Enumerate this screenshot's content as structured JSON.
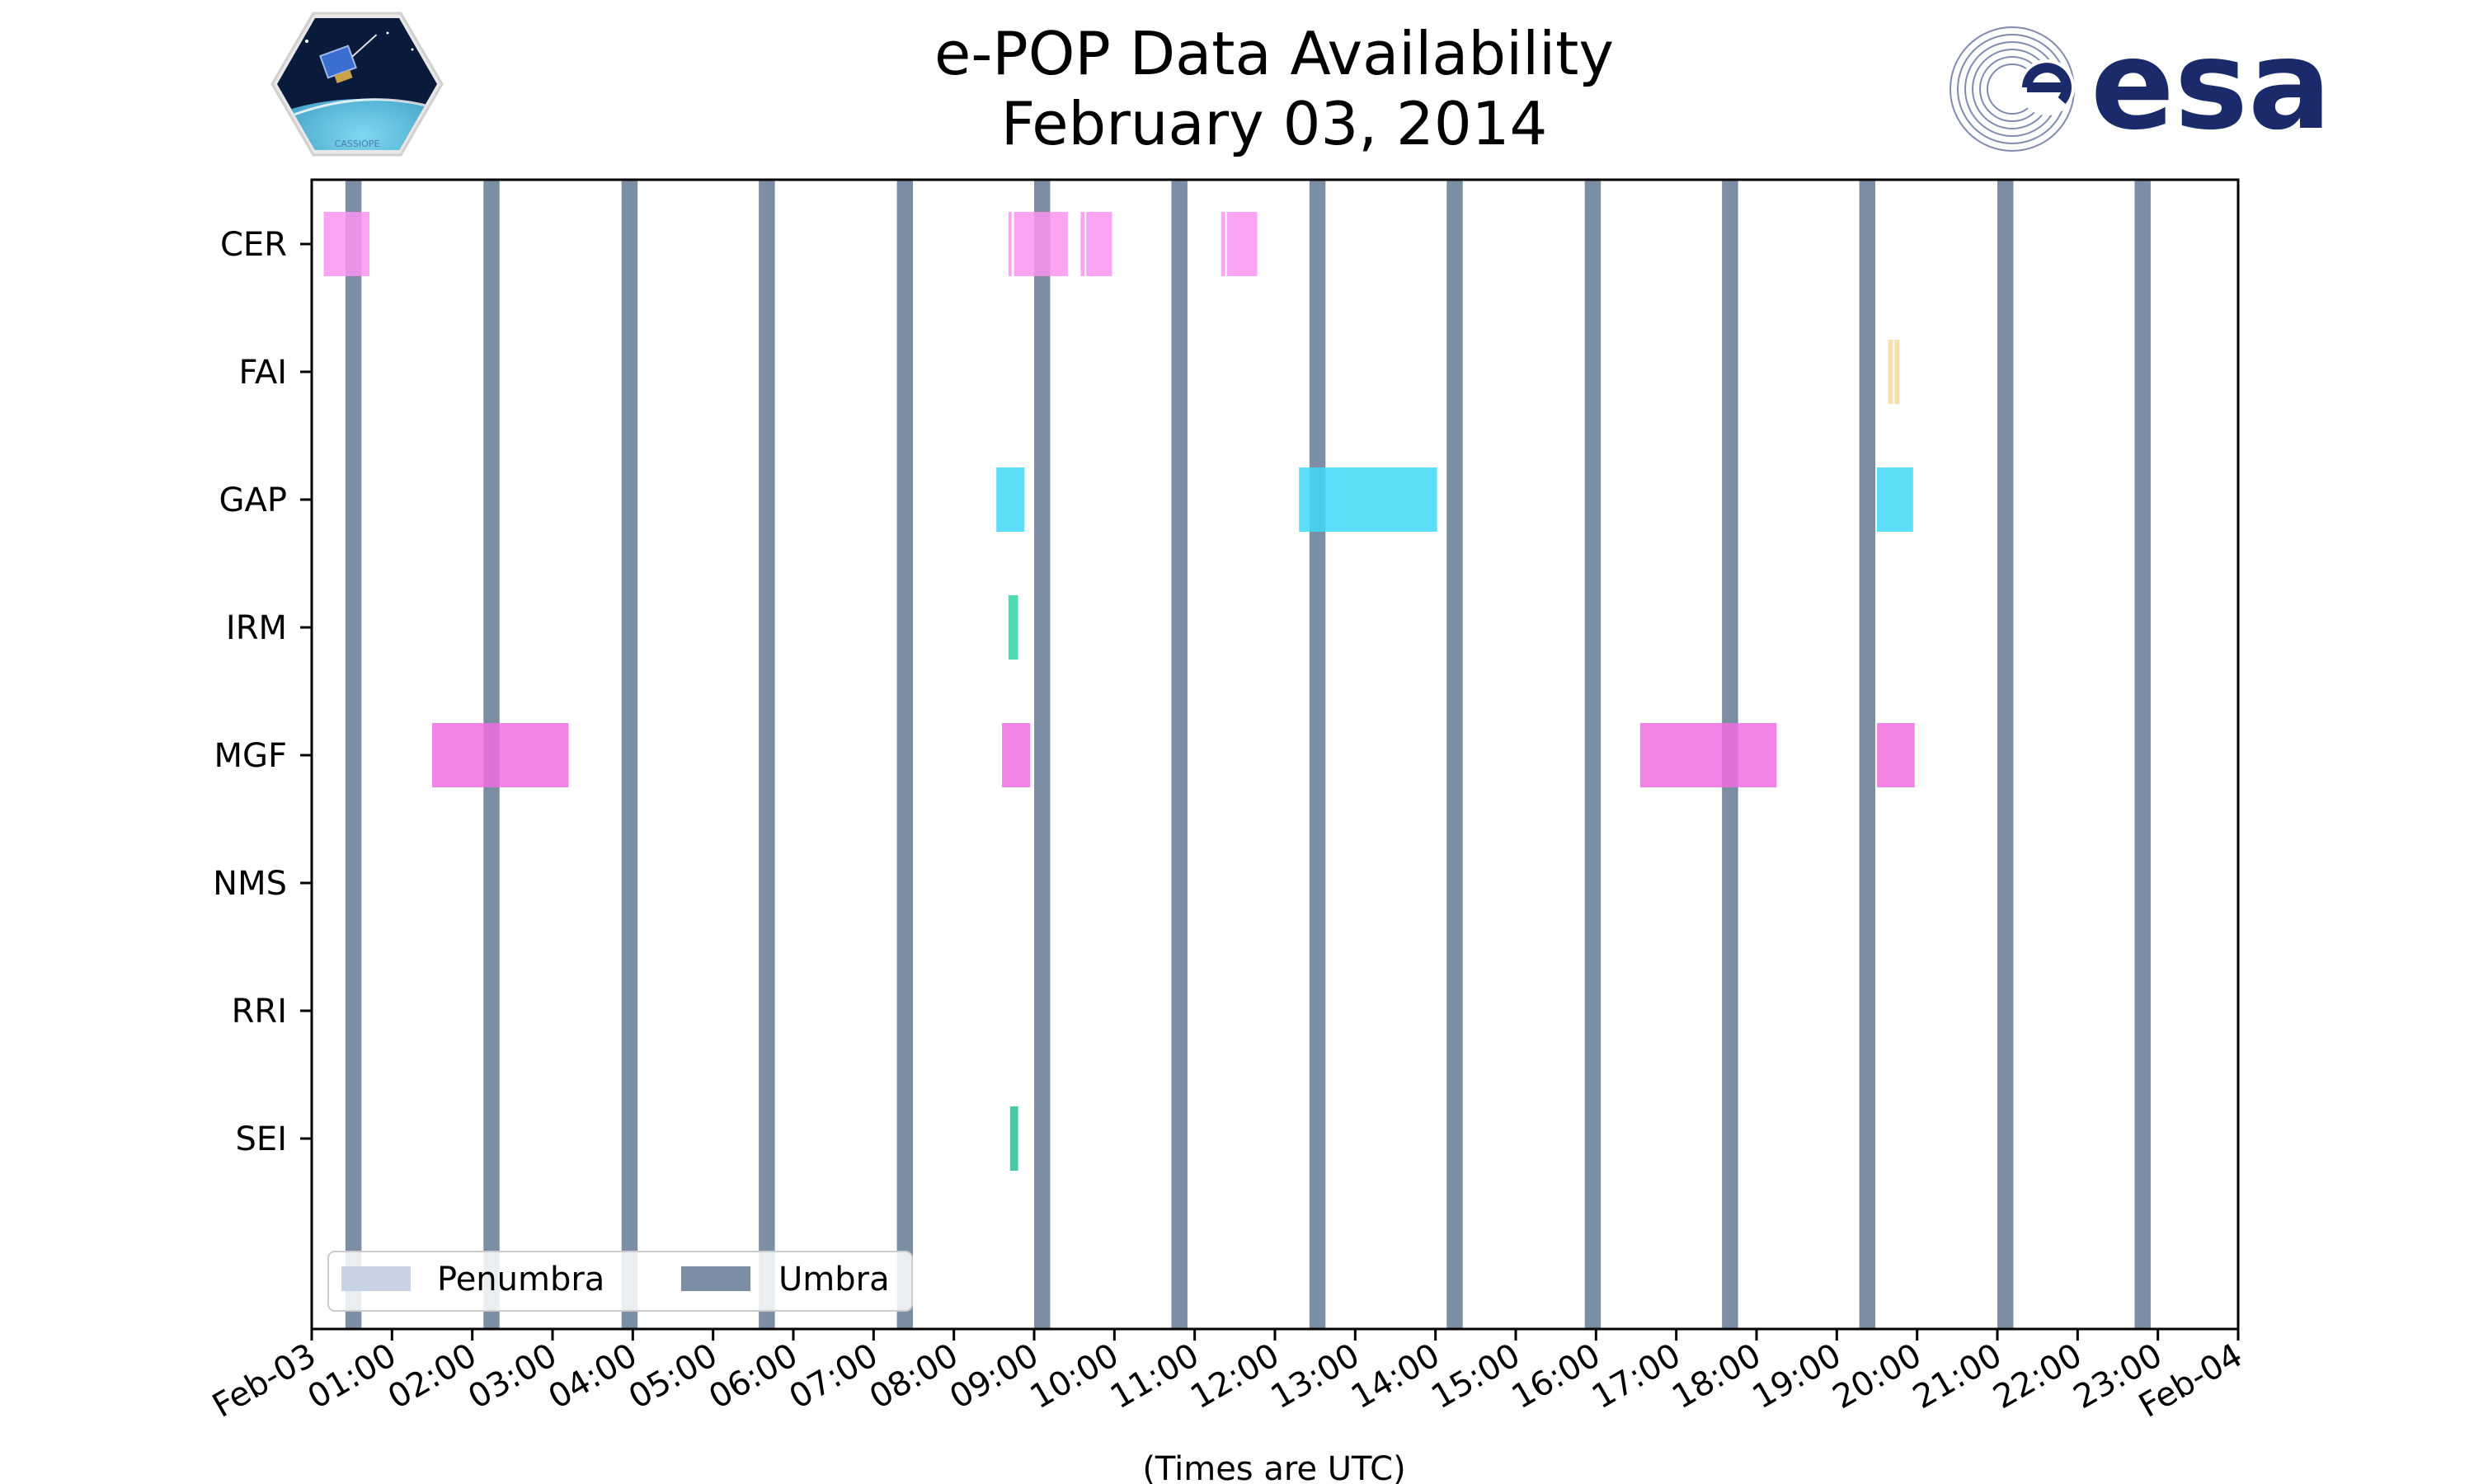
{
  "chart_data": {
    "type": "timeline",
    "title_line1": "e-POP Data Availability",
    "title_line2": "February 03, 2014",
    "xlabel": "(Times are UTC)",
    "x_range_hours": [
      0,
      24
    ],
    "x_tick_labels": [
      "Feb-03",
      "01:00",
      "02:00",
      "03:00",
      "04:00",
      "05:00",
      "06:00",
      "07:00",
      "08:00",
      "09:00",
      "10:00",
      "11:00",
      "12:00",
      "13:00",
      "14:00",
      "15:00",
      "16:00",
      "17:00",
      "18:00",
      "19:00",
      "20:00",
      "21:00",
      "22:00",
      "23:00",
      "Feb-04"
    ],
    "instruments": [
      "CER",
      "FAI",
      "GAP",
      "IRM",
      "MGF",
      "NMS",
      "RRI",
      "SEI"
    ],
    "umbra_hours": [
      [
        0.42,
        0.62
      ],
      [
        2.14,
        2.34
      ],
      [
        3.86,
        4.06
      ],
      [
        5.57,
        5.77
      ],
      [
        7.29,
        7.49
      ],
      [
        9.0,
        9.2
      ],
      [
        10.71,
        10.91
      ],
      [
        12.43,
        12.63
      ],
      [
        14.14,
        14.34
      ],
      [
        15.86,
        16.06
      ],
      [
        17.57,
        17.77
      ],
      [
        19.28,
        19.48
      ],
      [
        21.0,
        21.2
      ],
      [
        22.71,
        22.91
      ]
    ],
    "series": [
      {
        "name": "CER",
        "color": "#fb94f2",
        "intervals": [
          [
            0.15,
            0.72
          ],
          [
            8.68,
            8.72
          ],
          [
            8.75,
            9.42
          ],
          [
            9.58,
            9.63
          ],
          [
            9.65,
            9.97
          ],
          [
            11.33,
            11.38
          ],
          [
            11.4,
            11.78
          ]
        ]
      },
      {
        "name": "FAI",
        "color": "#fbd89b",
        "intervals": [
          [
            19.64,
            19.7
          ],
          [
            19.72,
            19.78
          ]
        ]
      },
      {
        "name": "GAP",
        "color": "#3fd8f8",
        "intervals": [
          [
            8.53,
            8.88
          ],
          [
            12.3,
            14.02
          ],
          [
            19.5,
            19.95
          ]
        ]
      },
      {
        "name": "IRM",
        "color": "#2fd3a6",
        "intervals": [
          [
            8.68,
            8.8
          ]
        ]
      },
      {
        "name": "MGF",
        "color": "#f06ee0",
        "intervals": [
          [
            1.5,
            3.2
          ],
          [
            8.6,
            8.95
          ],
          [
            16.55,
            18.25
          ],
          [
            19.5,
            19.97
          ]
        ]
      },
      {
        "name": "NMS",
        "color": "#888888",
        "intervals": []
      },
      {
        "name": "RRI",
        "color": "#888888",
        "intervals": []
      },
      {
        "name": "SEI",
        "color": "#25bf96",
        "intervals": [
          [
            8.7,
            8.8
          ]
        ]
      }
    ],
    "legend": {
      "location": "lower-left",
      "entries": [
        {
          "label": "Penumbra",
          "color": "#c8d4e4"
        },
        {
          "label": "Umbra",
          "color": "#7c8ea3"
        }
      ]
    }
  },
  "logos": {
    "mission_text": "CASSIOPE",
    "agency_text": "esa"
  }
}
